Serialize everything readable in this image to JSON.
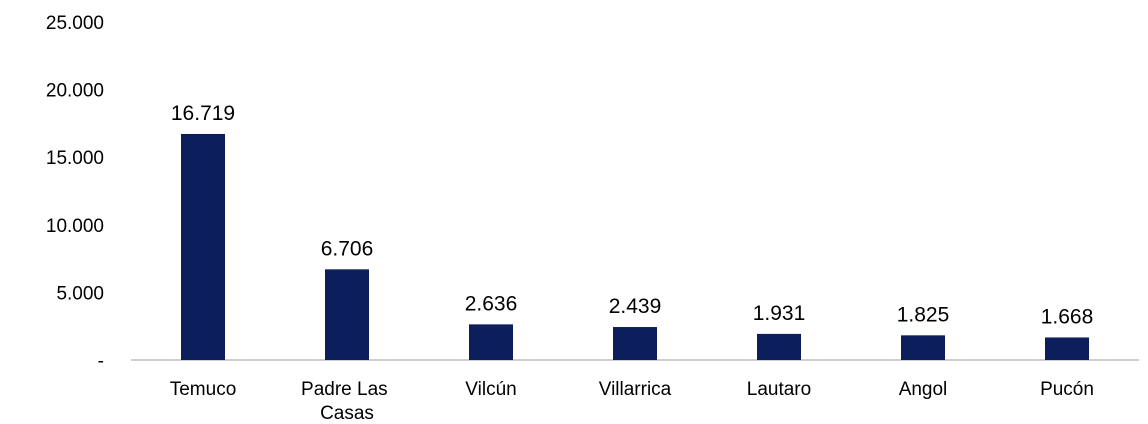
{
  "chart_data": {
    "type": "bar",
    "categories": [
      "Temuco",
      "Padre Las Casas",
      "Vilcún",
      "Villarrica",
      "Lautaro",
      "Angol",
      "Pucón"
    ],
    "values": [
      16719,
      6706,
      2636,
      2439,
      1931,
      1825,
      1668
    ],
    "value_labels": [
      "16.719",
      "6.706",
      "2.636",
      "2.439",
      "1.931",
      "1.825",
      "1.668"
    ],
    "color": "#0c1f5c",
    "ylim": [
      0,
      25000
    ],
    "yticks": [
      {
        "value": 0,
        "label": "-"
      },
      {
        "value": 5000,
        "label": "5.000"
      },
      {
        "value": 10000,
        "label": "10.000"
      },
      {
        "value": 15000,
        "label": "15.000"
      },
      {
        "value": 20000,
        "label": "20.000"
      },
      {
        "value": 25000,
        "label": "25.000"
      }
    ],
    "grid": false
  }
}
